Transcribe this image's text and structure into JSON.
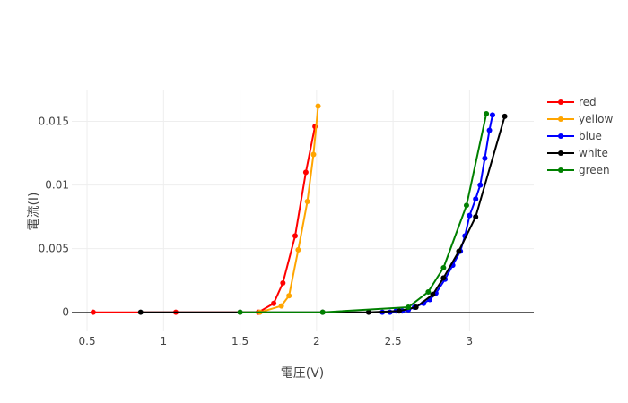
{
  "chart_data": {
    "type": "line",
    "xlabel": "電圧(V)",
    "ylabel": "電流(I)",
    "xlim": [
      0.4,
      3.42
    ],
    "ylim": [
      -0.0015,
      0.0175
    ],
    "grid": true,
    "legend_position": "top-right",
    "x_ticks": [
      0.5,
      1,
      1.5,
      2,
      2.5,
      3
    ],
    "x_tick_labels": [
      "0.5",
      "1",
      "1.5",
      "2",
      "2.5",
      "3"
    ],
    "y_ticks": [
      0,
      0.005,
      0.01,
      0.015
    ],
    "y_tick_labels": [
      "0",
      "0.005",
      "0.01",
      "0.015"
    ],
    "series": [
      {
        "name": "red",
        "color": "#ff0000",
        "x": [
          0.54,
          1.08,
          1.62,
          1.72,
          1.78,
          1.86,
          1.93,
          1.99
        ],
        "y": [
          0,
          0,
          0,
          0.0007,
          0.0023,
          0.006,
          0.011,
          0.0146
        ]
      },
      {
        "name": "yellow",
        "color": "#ffa500",
        "x": [
          1.63,
          1.77,
          1.82,
          1.88,
          1.94,
          1.98,
          2.01
        ],
        "y": [
          0,
          0.0005,
          0.0013,
          0.0049,
          0.0087,
          0.0124,
          0.0162
        ]
      },
      {
        "name": "blue",
        "color": "#0000ff",
        "x": [
          2.43,
          2.48,
          2.52,
          2.56,
          2.6,
          2.64,
          2.7,
          2.74,
          2.78,
          2.84,
          2.89,
          2.94,
          2.97,
          3.0,
          3.04,
          3.07,
          3.1,
          3.13,
          3.15
        ],
        "y": [
          0,
          0,
          0.0001,
          0.0001,
          0.0002,
          0.0004,
          0.0007,
          0.001,
          0.0015,
          0.0026,
          0.0037,
          0.0048,
          0.006,
          0.0076,
          0.0089,
          0.01,
          0.0121,
          0.0143,
          0.0155
        ]
      },
      {
        "name": "white",
        "color": "#000000",
        "x": [
          0.85,
          1.5,
          2.04,
          2.34,
          2.54,
          2.65,
          2.76,
          2.83,
          2.93,
          3.04,
          3.23
        ],
        "y": [
          0,
          0,
          0,
          0,
          0.0001,
          0.0004,
          0.0014,
          0.0027,
          0.0048,
          0.0075,
          0.0154
        ]
      },
      {
        "name": "green",
        "color": "#008000",
        "x": [
          1.5,
          2.04,
          2.6,
          2.73,
          2.83,
          2.98,
          3.11
        ],
        "y": [
          0,
          0,
          0.0004,
          0.0016,
          0.0035,
          0.0084,
          0.0156
        ]
      }
    ]
  }
}
